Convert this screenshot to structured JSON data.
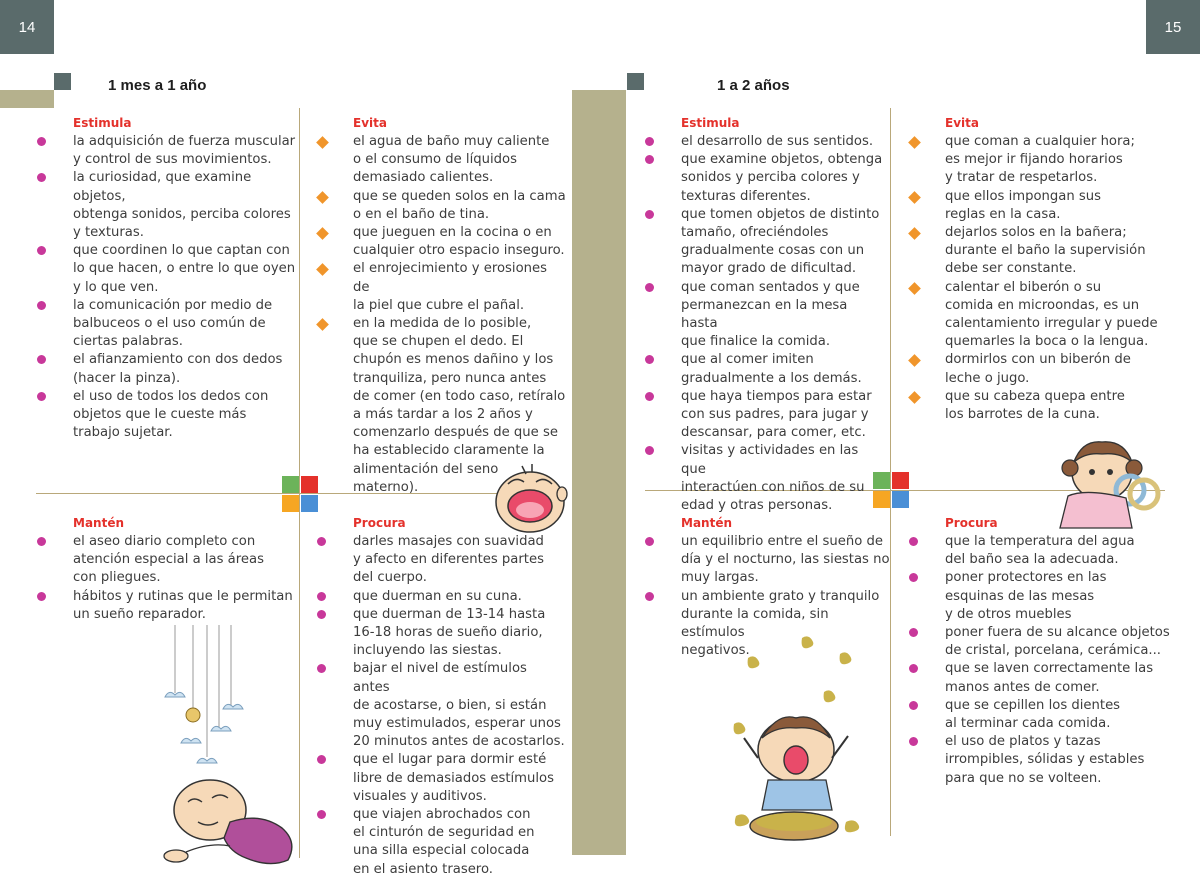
{
  "page_numbers": {
    "left": "14",
    "right": "15"
  },
  "left_section": {
    "title": "1 mes a 1 año",
    "estimula": {
      "heading": "Estimula",
      "items": [
        "la adquisición de fuerza muscular\ny control de sus movimientos.",
        "la curiosidad, que examine objetos,\nobtenga sonidos, perciba colores\ny texturas.",
        "que coordinen lo que captan con\nlo que hacen, o entre lo que oyen\ny lo que ven.",
        "la comunicación por medio de\nbalbuceos o el uso común de\nciertas palabras.",
        "el afianzamiento con dos dedos\n(hacer la pinza).",
        "el uso de todos los dedos con\nobjetos que le cueste más\ntrabajo sujetar."
      ]
    },
    "evita": {
      "heading": "Evita",
      "items": [
        "el agua de baño muy caliente\no el consumo de líquidos\ndemasiado calientes.",
        "que se queden solos en la cama\no en el baño de tina.",
        "que jueguen en la cocina o en\ncualquier otro espacio inseguro.",
        "el enrojecimiento y erosiones de\nla piel que cubre el pañal.",
        "en la medida de lo posible,\nque se chupen el dedo. El\nchupón es menos dañino y los\ntranquiliza, pero nunca antes\nde comer (en todo caso, retíralo\na más tardar a los 2 años y\ncomenzarlo después de que se\nha establecido claramente la\nalimentación del seno materno)."
      ]
    },
    "manten": {
      "heading": "Mantén",
      "items": [
        "el aseo diario completo con\natención especial a las áreas\ncon pliegues.",
        "hábitos y rutinas que le permitan\nun sueño reparador."
      ]
    },
    "procura": {
      "heading": "Procura",
      "items": [
        "darles masajes con suavidad\ny afecto en diferentes partes\ndel cuerpo.",
        "que duerman en su cuna.",
        "que duerman de 13-14 hasta\n16-18 horas de sueño diario,\nincluyendo las siestas.",
        "bajar el nivel de estímulos antes\nde acostarse, o bien, si están\nmuy estimulados, esperar unos\n20 minutos antes de acostarlos.",
        "que el lugar para dormir esté\nlibre de demasiados estímulos\nvisuales y auditivos.",
        "que viajen abrochados con\nel cinturón de seguridad en\nuna silla especial colocada\nen el asiento trasero."
      ]
    }
  },
  "right_section": {
    "title": "1 a 2 años",
    "estimula": {
      "heading": "Estimula",
      "items": [
        "el desarrollo de sus sentidos.",
        "que examine objetos, obtenga\nsonidos y perciba colores y\ntexturas diferentes.",
        "que tomen objetos de distinto\ntamaño, ofreciéndoles\ngradualmente cosas con un\nmayor grado de dificultad.",
        "que coman sentados y que\npermanezcan en la mesa hasta\nque finalice la comida.",
        "que al comer imiten\ngradualmente a los demás.",
        "que haya tiempos para estar\ncon sus padres, para jugar y\ndescansar, para comer, etc.",
        "visitas y actividades en las que\ninteractúen con niños de su\nedad y otras personas."
      ]
    },
    "evita": {
      "heading": "Evita",
      "items": [
        "que coman a cualquier hora;\nes mejor ir fijando horarios\ny tratar de respetarlos.",
        "que ellos impongan sus\nreglas en la casa.",
        "dejarlos solos en la bañera;\ndurante el baño la supervisión\ndebe ser constante.",
        "calentar el biberón o su\ncomida en microondas, es un\ncalentamiento irregular y puede\nquemarles la boca o la lengua.",
        "dormirlos con un biberón de\nleche o jugo.",
        "que su cabeza quepa entre\nlos barrotes de la cuna."
      ]
    },
    "manten": {
      "heading": "Mantén",
      "items": [
        "un equilibrio entre el sueño de\ndía y el nocturno, las siestas no\nmuy largas.",
        "un ambiente grato y tranquilo\ndurante la comida, sin estímulos\nnegativos."
      ]
    },
    "procura": {
      "heading": "Procura",
      "items": [
        "que la temperatura del agua\ndel baño sea la adecuada.",
        "poner protectores en las\nesquinas de las mesas\ny de otros muebles",
        "poner fuera de su alcance objetos\nde cristal, porcelana, cerámica...",
        "que se laven correctamente las\nmanos antes de comer.",
        "que se cepillen los dientes\nal terminar cada comida.",
        "el uso de platos y tazas\nirrompibles, sólidas y estables\npara que no se volteen."
      ]
    }
  },
  "colors": {
    "page_number_bg": "#5a6b6b",
    "spine": "#b5b18d",
    "heading_red": "#e4312b",
    "bullet_magenta": "#c8389a",
    "bullet_orange": "#f0952b",
    "divider": "#b9a87a",
    "cross_green": "#6cb35a",
    "cross_red": "#e4312b",
    "cross_orange": "#f6a623",
    "cross_blue": "#4a8fd6"
  }
}
